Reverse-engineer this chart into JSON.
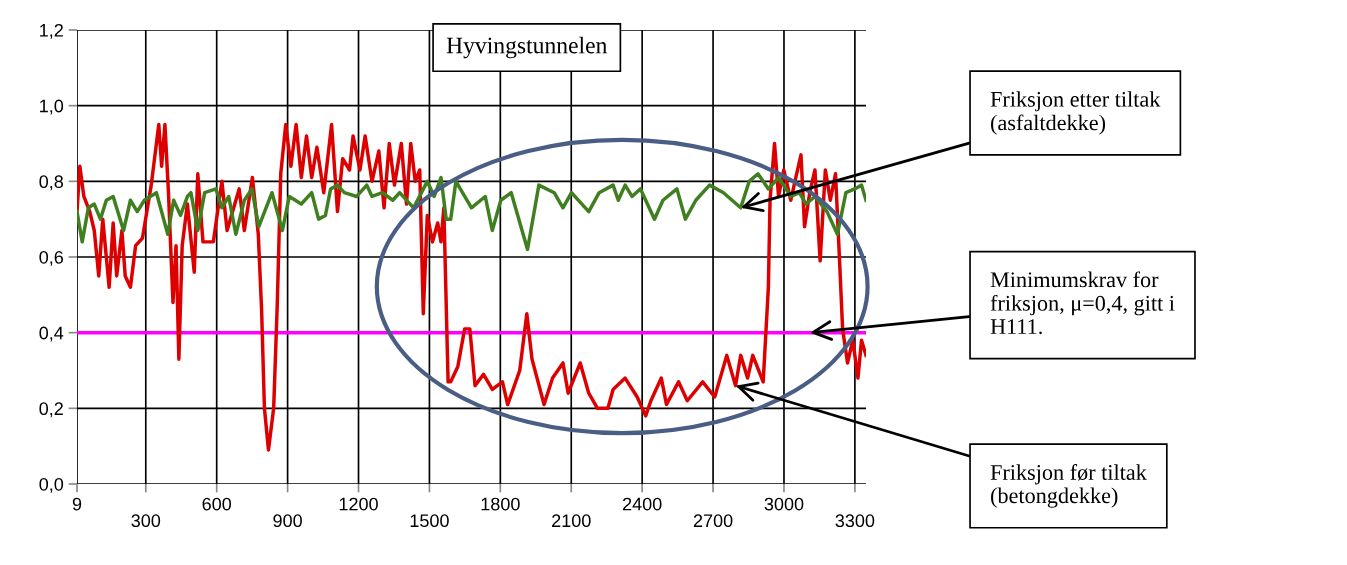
{
  "chart_data": {
    "type": "line",
    "title": "Hyvingstunnelen",
    "xlim": [
      9,
      3347
    ],
    "xticks": [
      9,
      {
        "value": 300,
        "label": null
      },
      600,
      {
        "value": 900,
        "label": null
      },
      1200,
      {
        "value": 1500,
        "label": null
      },
      1800,
      {
        "value": 2100,
        "label": null
      },
      2400,
      {
        "value": 2700,
        "label": null
      },
      3000,
      {
        "value": 3300,
        "label": null
      }
    ],
    "x2lim": [
      9,
      3347
    ],
    "x2ticks": [
      300,
      900,
      1500,
      2100,
      2700,
      3300
    ],
    "ylim": [
      0,
      1.2
    ],
    "yticks": [
      {
        "value": 0,
        "label": "0,0"
      },
      {
        "value": 0.2,
        "label": "0,2"
      },
      {
        "value": 0.4,
        "label": "0,4"
      },
      {
        "value": 0.6,
        "label": "0,6"
      },
      {
        "value": 0.8,
        "label": "0,8"
      },
      {
        "value": 1.0,
        "label": "1,0"
      },
      {
        "value": 1.2,
        "label": "1,2"
      }
    ],
    "grid": true,
    "marker": "none",
    "line_style": "solid",
    "series": [
      {
        "color": "#dd0000",
        "x": [
          9,
          21,
          38,
          63,
          82,
          101,
          118,
          145,
          162,
          177,
          199,
          213,
          235,
          257,
          286,
          323,
          355,
          367,
          381,
          396,
          415,
          428,
          440,
          454,
          476,
          505,
          520,
          542,
          586,
          622,
          644,
          695,
          717,
          751,
          776,
          790,
          802,
          819,
          841,
          856,
          871,
          892,
          914,
          936,
          958,
          980,
          1002,
          1024,
          1053,
          1086,
          1111,
          1133,
          1162,
          1177,
          1206,
          1228,
          1257,
          1286,
          1308,
          1330,
          1352,
          1381,
          1403,
          1421,
          1440,
          1459,
          1474,
          1491,
          1513,
          1535,
          1549,
          1561,
          1579,
          1590,
          1620,
          1649,
          1671,
          1693,
          1729,
          1766,
          1809,
          1831,
          1882,
          1912,
          1934,
          1985,
          2021,
          2065,
          2087,
          2138,
          2174,
          2211,
          2255,
          2277,
          2328,
          2379,
          2415,
          2437,
          2481,
          2503,
          2554,
          2591,
          2656,
          2707,
          2758,
          2795,
          2817,
          2846,
          2868,
          2912,
          2934,
          2941,
          2960,
          2977,
          2999,
          3029,
          3050,
          3072,
          3087,
          3109,
          3131,
          3153,
          3175,
          3196,
          3218,
          3233,
          3248,
          3269,
          3291,
          3313,
          3328,
          3347
        ],
        "values": [
          0.72,
          0.84,
          0.76,
          0.72,
          0.67,
          0.55,
          0.7,
          0.52,
          0.69,
          0.55,
          0.67,
          0.55,
          0.52,
          0.63,
          0.65,
          0.79,
          0.95,
          0.84,
          0.95,
          0.77,
          0.48,
          0.63,
          0.33,
          0.63,
          0.74,
          0.56,
          0.82,
          0.64,
          0.64,
          0.8,
          0.67,
          0.78,
          0.67,
          0.81,
          0.66,
          0.46,
          0.2,
          0.09,
          0.2,
          0.47,
          0.82,
          0.95,
          0.84,
          0.95,
          0.81,
          0.92,
          0.81,
          0.89,
          0.77,
          0.95,
          0.72,
          0.86,
          0.83,
          0.92,
          0.83,
          0.92,
          0.8,
          0.88,
          0.73,
          0.9,
          0.79,
          0.9,
          0.74,
          0.9,
          0.8,
          0.83,
          0.45,
          0.71,
          0.64,
          0.69,
          0.64,
          0.73,
          0.27,
          0.27,
          0.31,
          0.41,
          0.41,
          0.26,
          0.29,
          0.25,
          0.27,
          0.21,
          0.3,
          0.45,
          0.33,
          0.21,
          0.28,
          0.32,
          0.24,
          0.32,
          0.24,
          0.2,
          0.2,
          0.25,
          0.28,
          0.23,
          0.18,
          0.22,
          0.28,
          0.21,
          0.27,
          0.22,
          0.27,
          0.23,
          0.34,
          0.26,
          0.34,
          0.28,
          0.34,
          0.27,
          0.52,
          0.75,
          0.9,
          0.76,
          0.83,
          0.75,
          0.81,
          0.87,
          0.68,
          0.77,
          0.83,
          0.59,
          0.83,
          0.75,
          0.82,
          0.62,
          0.41,
          0.32,
          0.38,
          0.28,
          0.38,
          0.34
        ]
      },
      {
        "color": "#3f7f1f",
        "x": [
          9,
          31,
          57,
          82,
          108,
          133,
          162,
          206,
          235,
          264,
          294,
          345,
          393,
          418,
          447,
          476,
          491,
          520,
          549,
          597,
          622,
          651,
          681,
          717,
          749,
          778,
          834,
          878,
          907,
          958,
          1002,
          1031,
          1060,
          1082,
          1111,
          1140,
          1192,
          1235,
          1257,
          1301,
          1345,
          1374,
          1433,
          1491,
          1520,
          1549,
          1571,
          1590,
          1612,
          1678,
          1736,
          1766,
          1802,
          1846,
          1915,
          1963,
          2028,
          2065,
          2101,
          2174,
          2218,
          2277,
          2299,
          2328,
          2357,
          2393,
          2452,
          2488,
          2547,
          2583,
          2627,
          2685,
          2744,
          2817,
          2853,
          2890,
          2934,
          2977,
          3029,
          3065,
          3094,
          3131,
          3182,
          3226,
          3262,
          3299,
          3328,
          3347
        ],
        "values": [
          0.72,
          0.64,
          0.73,
          0.74,
          0.7,
          0.75,
          0.76,
          0.67,
          0.75,
          0.72,
          0.75,
          0.77,
          0.66,
          0.75,
          0.71,
          0.76,
          0.77,
          0.67,
          0.77,
          0.78,
          0.73,
          0.76,
          0.66,
          0.75,
          0.78,
          0.68,
          0.77,
          0.67,
          0.76,
          0.74,
          0.77,
          0.7,
          0.71,
          0.78,
          0.79,
          0.77,
          0.76,
          0.79,
          0.76,
          0.77,
          0.75,
          0.77,
          0.73,
          0.8,
          0.76,
          0.81,
          0.7,
          0.7,
          0.8,
          0.73,
          0.76,
          0.67,
          0.75,
          0.77,
          0.62,
          0.79,
          0.77,
          0.73,
          0.77,
          0.72,
          0.77,
          0.79,
          0.75,
          0.79,
          0.76,
          0.78,
          0.7,
          0.75,
          0.78,
          0.7,
          0.75,
          0.79,
          0.77,
          0.73,
          0.8,
          0.82,
          0.78,
          0.81,
          0.76,
          0.77,
          0.74,
          0.76,
          0.72,
          0.66,
          0.77,
          0.78,
          0.79,
          0.75
        ]
      }
    ],
    "ref_lines": [
      {
        "axis": "y",
        "value": 0.4,
        "color": "#ff00ff",
        "line_style": "solid"
      }
    ],
    "annotations": [
      {
        "text": "Friksjon etter tiltak\n(asfaltdekke)",
        "x": 2817,
        "y": 0.73
      },
      {
        "text": "Minimumskrav for\nfriksjon, μ=0,4, gitt i\nH111.",
        "x": 3110,
        "y": 0.4
      },
      {
        "text": "Friksjon før tiltak\n(betongdekke)",
        "x": 2795,
        "y": 0.26
      }
    ]
  }
}
